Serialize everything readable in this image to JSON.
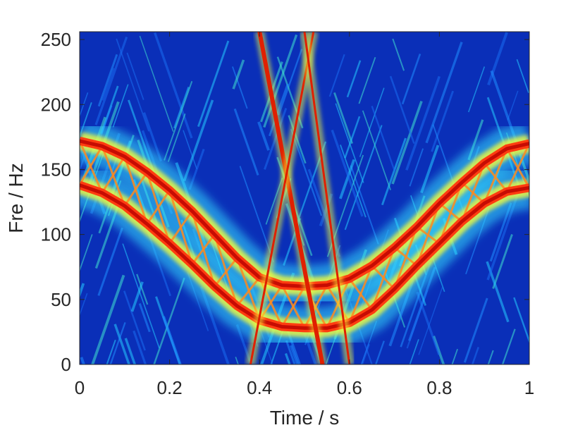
{
  "chart_data": {
    "type": "heatmap",
    "title": "",
    "xlabel": "Time / s",
    "ylabel": "Fre / Hz",
    "xlim": [
      0,
      1
    ],
    "ylim": [
      0,
      256
    ],
    "xticks": [
      {
        "value": 0,
        "label": "0"
      },
      {
        "value": 0.2,
        "label": "0.2"
      },
      {
        "value": 0.4,
        "label": "0.4"
      },
      {
        "value": 0.6,
        "label": "0.6"
      },
      {
        "value": 0.8,
        "label": "0.8"
      },
      {
        "value": 1,
        "label": "1"
      }
    ],
    "yticks": [
      {
        "value": 0,
        "label": "0"
      },
      {
        "value": 50,
        "label": "50"
      },
      {
        "value": 100,
        "label": "100"
      },
      {
        "value": 150,
        "label": "150"
      },
      {
        "value": 200,
        "label": "200"
      },
      {
        "value": 250,
        "label": "250"
      }
    ],
    "colormap": "jet",
    "grid": false,
    "ridges": [
      {
        "t": [
          0.0,
          0.05,
          0.1,
          0.15,
          0.2,
          0.25,
          0.3,
          0.35,
          0.4,
          0.45,
          0.5,
          0.55,
          0.6,
          0.65,
          0.7,
          0.75,
          0.8,
          0.85,
          0.9,
          0.95,
          1.0
        ],
        "f": [
          172,
          168,
          160,
          148,
          134,
          118,
          100,
          82,
          67,
          61,
          60,
          61,
          66,
          76,
          90,
          106,
          124,
          140,
          155,
          166,
          170
        ]
      },
      {
        "t": [
          0.0,
          0.05,
          0.1,
          0.15,
          0.2,
          0.25,
          0.3,
          0.35,
          0.4,
          0.45,
          0.5,
          0.55,
          0.6,
          0.65,
          0.7,
          0.75,
          0.8,
          0.85,
          0.9,
          0.95,
          1.0
        ],
        "f": [
          138,
          132,
          122,
          108,
          93,
          77,
          60,
          45,
          34,
          29,
          28,
          28,
          32,
          42,
          58,
          76,
          93,
          110,
          124,
          133,
          136
        ]
      }
    ],
    "transients": [
      {
        "t0": 0.4,
        "f0": 256,
        "t1": 0.54,
        "f1": 0
      },
      {
        "t0": 0.52,
        "f0": 256,
        "t1": 0.38,
        "f1": 0
      },
      {
        "t0": 0.5,
        "f0": 256,
        "t1": 0.6,
        "f1": 0
      }
    ]
  }
}
